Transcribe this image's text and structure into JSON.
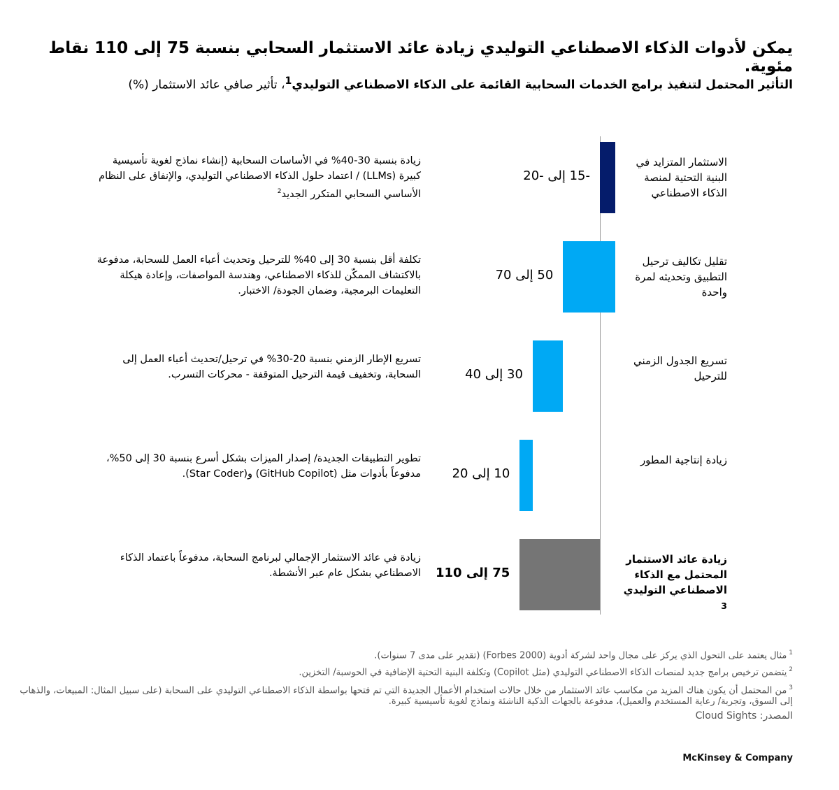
{
  "title": "يمكن لأدوات الذكاء الاصطناعي التوليدي زيادة عائد الاستثمار السحابي بنسبة 75 إلى 110 نقاط مئوية.",
  "subtitle_bold": "التأثير المحتمل لتنفيذ برامج الخدمات السحابية القائمة على الذكاء الاصطناعي التوليدي",
  "subtitle_sup": "1",
  "subtitle_rest": "، تأثير صافي عائد الاستثمار (%)",
  "colors": {
    "navy": "#051c6b",
    "blue": "#00a9f4",
    "gray": "#757575"
  },
  "chart_data": {
    "type": "bar",
    "subtype": "waterfall-horizontal",
    "categories": [
      "الاستثمار المتزايد في البنية التحتية لمنصة الذكاء الاصطناعي",
      "تقليل تكاليف ترحيل التطبيق وتحديثه لمرة واحدة",
      "تسريع الجدول الزمني للترحيل",
      "زيادة إنتاجية المطور",
      "زيادة عائد الاستثمار المحتمل مع الذكاء الاصطناعي التوليدي"
    ],
    "total_sup": "3",
    "ranges": [
      [
        -15,
        -20
      ],
      [
        50,
        70
      ],
      [
        30,
        40
      ],
      [
        10,
        20
      ],
      [
        75,
        110
      ]
    ],
    "value_labels": [
      "-15 إلى -20",
      "50 إلى 70",
      "30 إلى 40",
      "10 إلى 20",
      "75 إلى 110"
    ],
    "is_total": [
      false,
      false,
      false,
      false,
      true
    ],
    "bar_colors": [
      "#051c6b",
      "#00a9f4",
      "#00a9f4",
      "#00a9f4",
      "#757575"
    ],
    "descriptions": [
      "زيادة بنسبة 30-40% في الأساسات السحابية (إنشاء نماذج لغوية تأسيسية كبيرة (LLMs) / اعتماد حلول الذكاء الاصطناعي التوليدي، والإنفاق على النظام الأساسي السحابي المتكرر الجديد",
      "تكلفة أقل بنسبة 30 إلى 40% للترحيل وتحديث أعباء العمل للسحابة، مدفوعة بالاكتشاف الممكّن للذكاء الاصطناعي، وهندسة المواصفات، وإعادة هيكلة التعليمات البرمجية، وضمان الجودة/ الاختبار.",
      "تسريع الإطار الزمني بنسبة 20-30% في ترحيل/تحديث أعباء العمل إلى السحابة، وتخفيف قيمة الترحيل المتوقفة - محركات التسرب.",
      "تطوير التطبيقات الجديدة/ إصدار الميزات بشكل أسرع بنسبة 30 إلى 50%، مدفوعاً بأدوات مثل (GitHub Copilot) و(Star Coder).",
      "زيادة في عائد الاستثمار الإجمالي لبرنامج السحابة، مدفوعاً باعتماد الذكاء الاصطناعي بشكل عام عبر الأنشطة."
    ],
    "desc_sup": [
      "2",
      "",
      "",
      "",
      ""
    ],
    "xlabel": "",
    "ylabel": ""
  },
  "footnotes": [
    {
      "num": "1",
      "text": "مثال يعتمد على التحول الذي يركز على مجال واحد لشركة أدوية (Forbes 2000) (تقدير على مدى 7 سنوات)."
    },
    {
      "num": "2",
      "text": "يتضمن ترخيص برامج جديد لمنصات الذكاء الاصطناعي التوليدي (مثل Copilot) وتكلفة البنية التحتية الإضافية في الحوسبة/ التخزين."
    },
    {
      "num": "3",
      "text": "من المحتمل أن يكون هناك المزيد من مكاسب عائد الاستثمار من خلال حالات استخدام الأعمال الجديدة التي تم فتحها بواسطة الذكاء الاصطناعي التوليدي على السحابة (على سبيل المثال: المبيعات، والذهاب إلى السوق، وتجربة/ رعاية المستخدم والعميل)، مدفوعة بالجهات الذكية الناشئة ونماذج لغوية تأسيسية كبيرة."
    }
  ],
  "source": "المصدر: Cloud Sights",
  "logo": "McKinsey & Company"
}
